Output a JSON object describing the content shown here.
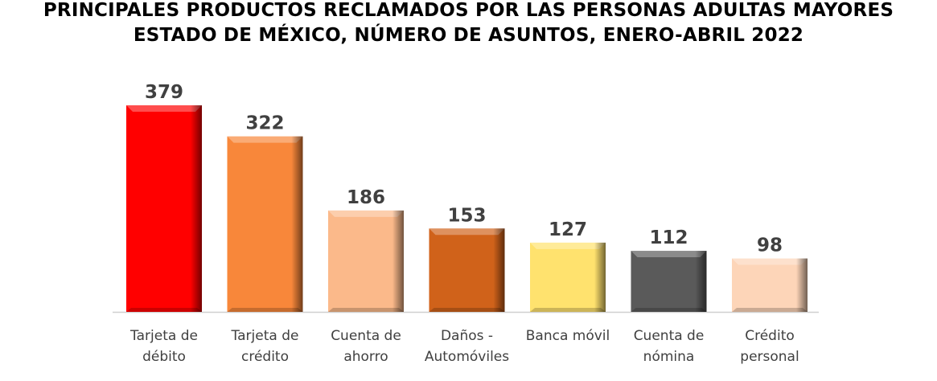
{
  "chart_data": {
    "type": "bar",
    "title": "PRINCIPALES PRODUCTOS RECLAMADOS POR LAS PERSONAS ADULTAS MAYORES",
    "subtitle": "ESTADO DE MÉXICO, NÚMERO DE ASUNTOS, ENERO-ABRIL 2022",
    "xlabel": "",
    "ylabel": "",
    "ylim": [
      0,
      379
    ],
    "grid": false,
    "categories": [
      [
        "Tarjeta de",
        "débito"
      ],
      [
        "Tarjeta de",
        "crédito"
      ],
      [
        "Cuenta de",
        "ahorro"
      ],
      [
        "Daños -",
        "Automóviles"
      ],
      [
        "Banca móvil"
      ],
      [
        "Cuenta de",
        "nómina"
      ],
      [
        "Crédito",
        "personal"
      ]
    ],
    "values": [
      379,
      322,
      186,
      153,
      127,
      112,
      98
    ],
    "colors": [
      "#FF0000",
      "#F8873A",
      "#FBB98A",
      "#D0621A",
      "#FFE26E",
      "#5A5A5A",
      "#FDD5B8"
    ]
  }
}
